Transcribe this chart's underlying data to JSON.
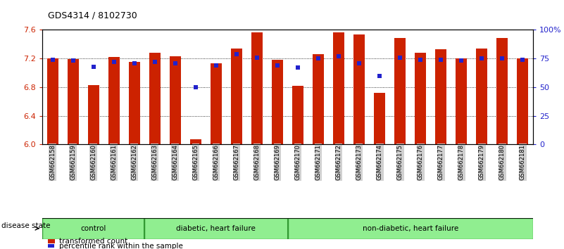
{
  "title": "GDS4314 / 8102730",
  "samples": [
    "GSM662158",
    "GSM662159",
    "GSM662160",
    "GSM662161",
    "GSM662162",
    "GSM662163",
    "GSM662164",
    "GSM662165",
    "GSM662166",
    "GSM662167",
    "GSM662168",
    "GSM662169",
    "GSM662170",
    "GSM662171",
    "GSM662172",
    "GSM662173",
    "GSM662174",
    "GSM662175",
    "GSM662176",
    "GSM662177",
    "GSM662178",
    "GSM662179",
    "GSM662180",
    "GSM662181"
  ],
  "bar_values": [
    7.2,
    7.19,
    6.83,
    7.22,
    7.15,
    7.28,
    7.23,
    6.07,
    7.13,
    7.34,
    7.57,
    7.18,
    6.82,
    7.26,
    7.57,
    7.54,
    6.72,
    7.49,
    7.28,
    7.33,
    7.2,
    7.34,
    7.49,
    7.2
  ],
  "dot_values": [
    74,
    73,
    68,
    72,
    71,
    72,
    71,
    50,
    69,
    79,
    76,
    69,
    67,
    75,
    77,
    71,
    60,
    76,
    74,
    74,
    73,
    75,
    75,
    74
  ],
  "group_data": [
    {
      "start": 0,
      "end": 4,
      "label": "control"
    },
    {
      "start": 5,
      "end": 11,
      "label": "diabetic, heart failure"
    },
    {
      "start": 12,
      "end": 23,
      "label": "non-diabetic, heart failure"
    }
  ],
  "ylim_left": [
    6.0,
    7.6
  ],
  "ylim_right": [
    0,
    100
  ],
  "bar_color": "#cc2200",
  "dot_color": "#2222cc",
  "plot_bg": "#ffffff",
  "xtick_bg": "#d0d0d0",
  "group_fill": "#90ee90",
  "group_edge": "#339933",
  "yticks_left": [
    6.0,
    6.4,
    6.8,
    7.2,
    7.6
  ],
  "yticks_right": [
    0,
    25,
    50,
    75,
    100
  ],
  "ytick_labels_right": [
    "0",
    "25",
    "50",
    "75",
    "100%"
  ],
  "grid_lines": [
    6.4,
    6.8,
    7.2
  ],
  "bar_width": 0.55
}
